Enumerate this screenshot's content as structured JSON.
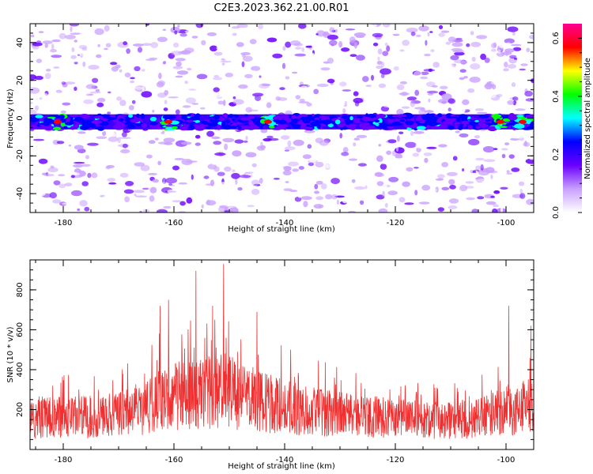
{
  "figure": {
    "title": "C2E3.2023.362.21.00.R01"
  },
  "chart_data": [
    {
      "type": "heatmap",
      "xlabel": "Height of straight line (km)",
      "ylabel": "Frequency (Hz)",
      "xlim": [
        -186,
        -95
      ],
      "ylim": [
        -50,
        50
      ],
      "x_ticks": [
        "-180",
        "-160",
        "-140",
        "-120",
        "-100"
      ],
      "x_tick_values": [
        -180,
        -160,
        -140,
        -120,
        -100
      ],
      "y_ticks": [
        "40",
        "20",
        "0",
        "-20",
        "-40"
      ],
      "y_tick_values": [
        40,
        20,
        0,
        -20,
        -40
      ],
      "band_center_hz": -2,
      "band_halfwidth_hz": 4,
      "peak_locations_km": [
        -181,
        -161,
        -143,
        -101,
        -97
      ],
      "colorbar": {
        "label": "Normalized spectral amplitude",
        "range": [
          0,
          0.65
        ],
        "ticks": [
          "0.0",
          "0.2",
          "0.4",
          "0.6"
        ],
        "tick_values": [
          0,
          0.2,
          0.4,
          0.6
        ],
        "colors": [
          "#ffffff",
          "#c9a0ff",
          "#6a00ff",
          "#0000ff",
          "#00ffff",
          "#00ff00",
          "#ffff00",
          "#ff0000",
          "#ff0090"
        ]
      }
    },
    {
      "type": "line",
      "xlabel": "Height of straight line (km)",
      "ylabel": "SNR (10 * v/v)",
      "xlim": [
        -186,
        -95
      ],
      "ylim": [
        0,
        950
      ],
      "x_ticks": [
        "-180",
        "-160",
        "-140",
        "-120",
        "-100"
      ],
      "x_tick_values": [
        -180,
        -160,
        -140,
        -120,
        -100
      ],
      "y_ticks": [
        "200",
        "400",
        "600",
        "800"
      ],
      "y_tick_values": [
        200,
        400,
        600,
        800
      ],
      "line_color": "#f03030",
      "envelope": {
        "x": [
          -186,
          -180,
          -175,
          -170,
          -166,
          -163,
          -160,
          -157,
          -154,
          -151,
          -148,
          -145,
          -140,
          -135,
          -130,
          -125,
          -120,
          -115,
          -110,
          -105,
          -102,
          -100,
          -98,
          -96,
          -95
        ],
        "y": [
          150,
          165,
          160,
          175,
          200,
          240,
          270,
          275,
          285,
          300,
          265,
          240,
          215,
          190,
          175,
          165,
          155,
          150,
          145,
          155,
          180,
          200,
          200,
          215,
          210
        ]
      },
      "spikes": [
        {
          "x": -162.5,
          "y": 720
        },
        {
          "x": -161,
          "y": 750
        },
        {
          "x": -156,
          "y": 895
        },
        {
          "x": -151,
          "y": 930
        },
        {
          "x": -153,
          "y": 720
        },
        {
          "x": -145,
          "y": 690
        },
        {
          "x": -99.5,
          "y": 720
        },
        {
          "x": -95.5,
          "y": 620
        }
      ]
    }
  ]
}
